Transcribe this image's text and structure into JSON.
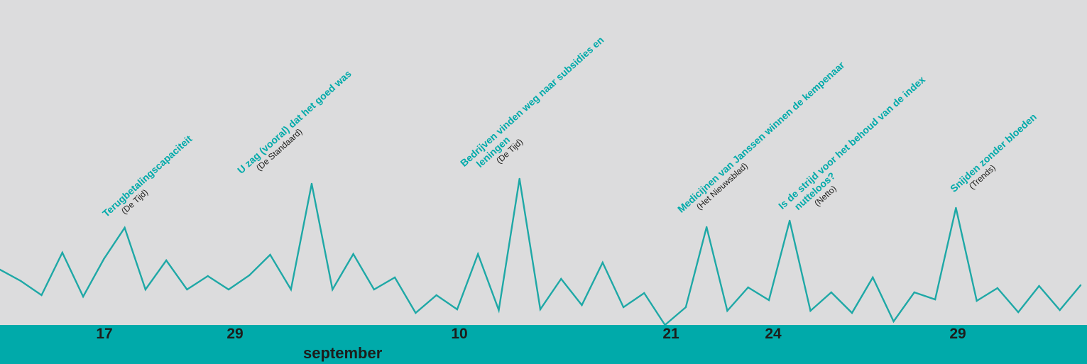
{
  "colors": {
    "background": "#dcdcdd",
    "line": "#1ea8a6",
    "band": "#00aaaa",
    "headline": "#00aaaa",
    "text": "#1d1d1b"
  },
  "chart_data": {
    "type": "line",
    "x_month": "september",
    "tick_labels": [
      "17",
      "29",
      "10",
      "21",
      "24",
      "29"
    ],
    "ylim": [
      0,
      200
    ],
    "values": [
      78,
      62,
      42,
      102,
      40,
      93,
      137,
      50,
      91,
      50,
      69,
      50,
      70,
      99,
      50,
      199,
      50,
      100,
      50,
      67,
      17,
      42,
      22,
      100,
      21,
      206,
      22,
      65,
      28,
      88,
      25,
      45,
      0,
      25,
      138,
      20,
      53,
      35,
      147,
      20,
      46,
      17,
      67,
      5,
      46,
      36,
      165,
      34,
      52,
      18,
      55,
      21,
      56
    ],
    "annotations": [
      {
        "headline": [
          "Terugbetalingscapaciteit"
        ],
        "source": "(De Tijd)"
      },
      {
        "headline": [
          "U zag (vooral) dat het goed was"
        ],
        "source": "(De Standaard)"
      },
      {
        "headline": [
          "Bedrijven vinden weg naar subsidies en",
          "leningen"
        ],
        "source": "(De Tijd)"
      },
      {
        "headline": [
          "Medicijnen van Janssen winnen de kempenaar"
        ],
        "source": "(Het Nieuwsblad)"
      },
      {
        "headline": [
          "Is de strijd voor het behoud van de index",
          "nutteloos?"
        ],
        "source": "(Netto)"
      },
      {
        "headline": [
          "Snijden zonder bloeden"
        ],
        "source": "(Trends)"
      }
    ]
  }
}
